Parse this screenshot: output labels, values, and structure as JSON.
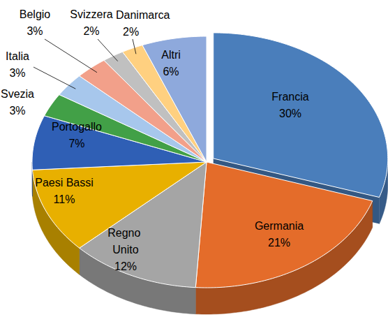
{
  "chart_data": {
    "type": "pie",
    "categories": [
      "Francia",
      "Germania",
      "Regno Unito",
      "Paesi Bassi",
      "Portogallo",
      "Svezia",
      "Italia",
      "Belgio",
      "Svizzera",
      "Danimarca",
      "Altri"
    ],
    "values": [
      30,
      21,
      12,
      11,
      7,
      3,
      3,
      3,
      2,
      2,
      6
    ],
    "value_labels": [
      "30%",
      "21%",
      "12%",
      "11%",
      "7%",
      "3%",
      "3%",
      "3%",
      "2%",
      "2%",
      "6%"
    ],
    "colors": [
      "#4a7ebb",
      "#e46c2a",
      "#a5a5a5",
      "#e8b000",
      "#2f5fb5",
      "#42a047",
      "#a7c7ec",
      "#f2a08a",
      "#c0c0c0",
      "#ffd080",
      "#8ea9dc"
    ],
    "data_labels": true
  }
}
